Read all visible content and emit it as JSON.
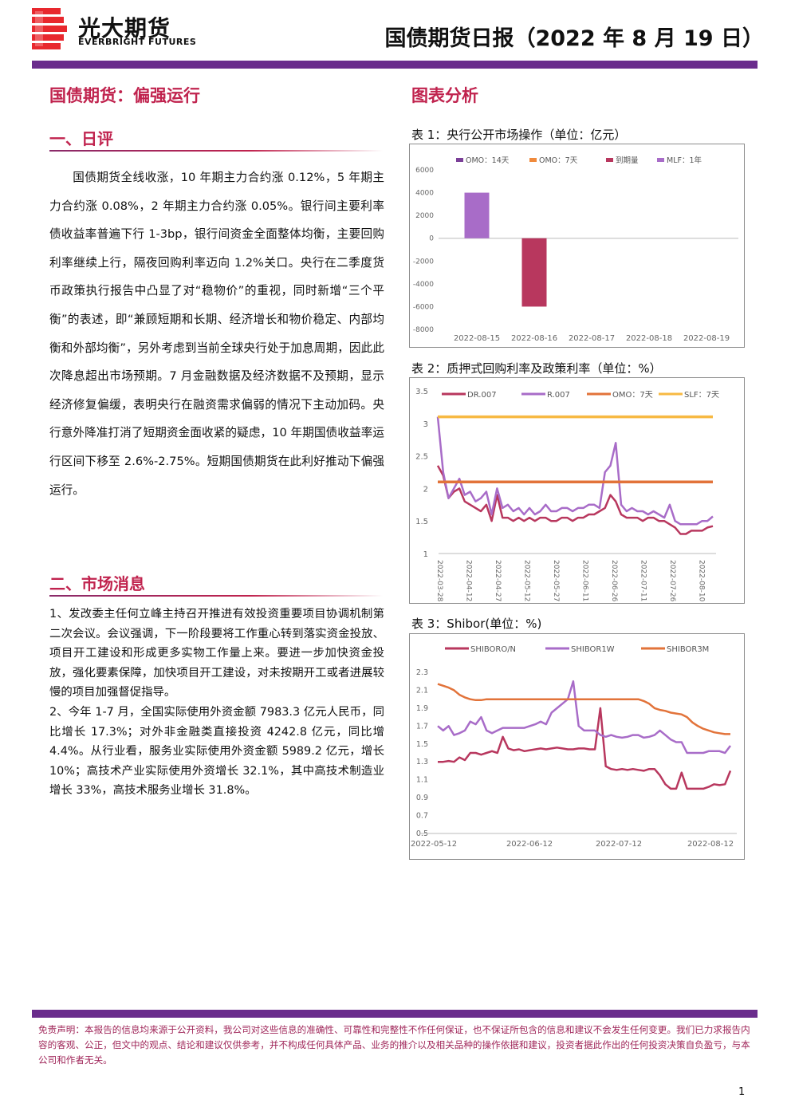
{
  "header": {
    "brand_cn": "光大期货",
    "brand_en": "EVERBRIGHT FUTURES",
    "report_title": "国债期货日报（2022 年 8 月 19 日）"
  },
  "headline": "国债期货：偏强运行",
  "chart_section_title": "图表分析",
  "sections": {
    "daily_title": "一、日评",
    "daily_body": "国债期货全线收涨，10 年期主力合约涨 0.12%，5 年期主力合约涨 0.08%，2 年期主力合约涨 0.05%。银行间主要利率债收益率普遍下行 1-3bp，银行间资金全面整体均衡，主要回购利率继续上行，隔夜回购利率迈向 1.2%关口。央行在二季度货币政策执行报告中凸显了对“稳物价”的重视，同时新增“三个平衡”的表述，即“兼顾短期和长期、经济增长和物价稳定、内部均衡和外部均衡”，另外考虑到当前全球央行处于加息周期，因此此次降息超出市场预期。7 月金融数据及经济数据不及预期，显示经济修复偏缓，表明央行在融资需求偏弱的情况下主动加码。央行意外降准打消了短期资金面收紧的疑虑，10 年期国债收益率运行区间下移至 2.6%-2.75%。短期国债期货在此利好推动下偏强运行。",
    "news_title": "二、市场消息",
    "news_items": [
      "1、发改委主任何立峰主持召开推进有效投资重要项目协调机制第二次会议。会议强调，下一阶段要将工作重心转到落实资金投放、项目开工建设和形成更多实物工作量上来。要进一步加快资金投放，强化要素保障，加快项目开工建设，对未按期开工或者进展较慢的项目加强督促指导。",
      "2、今年 1-7 月，全国实际使用外资金额 7983.3 亿元人民币，同比增长 17.3%；对外非金融类直接投资 4242.8 亿元，同比增 4.4%。从行业看，服务业实际使用外资金额 5989.2 亿元，增长 10%；高技术产业实际使用外资增长 32.1%，其中高技术制造业增长 33%，高技术服务业增长 31.8%。"
    ]
  },
  "captions": {
    "c1": "表 1：央行公开市场操作（单位：亿元）",
    "c2": "表 2：质押式回购利率及政策利率（单位：%）",
    "c3": "表 3：Shibor(单位：%)"
  },
  "colors": {
    "brand_purple": "#6a2c8c",
    "accent_red": "#c0234e",
    "omo14": "#7b3f98",
    "omo7": "#f08a3c",
    "maturity": "#b8375e",
    "mlf": "#a86cc8",
    "dr007": "#b8375e",
    "r007": "#a86cc8",
    "omo_rate": "#e2733a",
    "slf": "#f7b942",
    "shibor_on": "#b8375e",
    "shibor_1w": "#a86cc8",
    "shibor_3m": "#e2733a"
  },
  "chart_data": [
    {
      "type": "bar",
      "categories": [
        "2022-08-15",
        "2022-08-16",
        "2022-08-17",
        "2022-08-18",
        "2022-08-19"
      ],
      "series": [
        {
          "name": "OMO：14天",
          "values": [
            0,
            0,
            0,
            0,
            0
          ]
        },
        {
          "name": "OMO：7天",
          "values": [
            0,
            0,
            0,
            0,
            0
          ]
        },
        {
          "name": "到期量",
          "values": [
            0,
            -6000,
            0,
            0,
            0
          ]
        },
        {
          "name": "MLF：1年",
          "values": [
            4000,
            0,
            0,
            0,
            0
          ]
        }
      ],
      "yticks": [
        "6000",
        "4000",
        "2000",
        "0",
        "-2000",
        "-4000",
        "-6000",
        "-8000"
      ],
      "ylim": [
        -8000,
        6000
      ],
      "legend": "top"
    },
    {
      "type": "line",
      "xticks": [
        "2022-03-28",
        "2022-04-12",
        "2022-04-27",
        "2022-05-12",
        "2022-05-27",
        "2022-06-11",
        "2022-06-26",
        "2022-07-11",
        "2022-07-26",
        "2022-08-10"
      ],
      "yticks": [
        "3.5",
        "3",
        "2.5",
        "2",
        "1.5",
        "1"
      ],
      "ylim": [
        1,
        3.5
      ],
      "series": [
        {
          "name": "DR.007",
          "values": [
            2.35,
            2.2,
            1.85,
            1.95,
            2.0,
            1.8,
            1.75,
            1.7,
            1.65,
            1.75,
            1.5,
            1.9,
            1.55,
            1.55,
            1.5,
            1.55,
            1.5,
            1.55,
            1.5,
            1.55,
            1.55,
            1.5,
            1.5,
            1.55,
            1.55,
            1.5,
            1.55,
            1.55,
            1.6,
            1.6,
            1.65,
            1.7,
            1.9,
            1.8,
            1.6,
            1.55,
            1.55,
            1.55,
            1.5,
            1.55,
            1.55,
            1.5,
            1.5,
            1.45,
            1.4,
            1.3,
            1.3,
            1.35,
            1.35,
            1.35,
            1.4,
            1.42
          ]
        },
        {
          "name": "R.007",
          "values": [
            3.1,
            2.25,
            1.85,
            2.0,
            2.15,
            1.9,
            1.95,
            1.8,
            1.85,
            1.95,
            1.6,
            2.0,
            1.7,
            1.75,
            1.65,
            1.7,
            1.6,
            1.7,
            1.6,
            1.65,
            1.75,
            1.65,
            1.65,
            1.7,
            1.7,
            1.65,
            1.7,
            1.7,
            1.75,
            1.75,
            1.7,
            2.25,
            2.35,
            2.7,
            1.75,
            1.65,
            1.7,
            1.65,
            1.65,
            1.6,
            1.65,
            1.6,
            1.55,
            1.75,
            1.5,
            1.45,
            1.45,
            1.45,
            1.45,
            1.5,
            1.5,
            1.57
          ]
        },
        {
          "name": "OMO：7天",
          "values": [
            2.1,
            2.1
          ]
        },
        {
          "name": "SLF：7天",
          "values": [
            3.1,
            3.1
          ]
        }
      ],
      "legend": "top"
    },
    {
      "type": "line",
      "xticks": [
        "2022-05-12",
        "2022-06-12",
        "2022-07-12",
        "2022-08-12"
      ],
      "yticks": [
        "2.3",
        "2.1",
        "1.9",
        "1.7",
        "1.5",
        "1.3",
        "1.1",
        "0.9",
        "0.7",
        "0.5"
      ],
      "ylim": [
        0.5,
        2.3
      ],
      "series": [
        {
          "name": "SHIBORO/N",
          "values": [
            1.3,
            1.3,
            1.31,
            1.3,
            1.35,
            1.32,
            1.4,
            1.4,
            1.38,
            1.4,
            1.42,
            1.4,
            1.58,
            1.45,
            1.43,
            1.44,
            1.42,
            1.43,
            1.44,
            1.45,
            1.44,
            1.45,
            1.46,
            1.45,
            1.44,
            1.44,
            1.45,
            1.45,
            1.44,
            1.44,
            1.9,
            1.25,
            1.22,
            1.21,
            1.22,
            1.21,
            1.22,
            1.21,
            1.2,
            1.22,
            1.22,
            1.15,
            1.05,
            1.0,
            1.0,
            1.18,
            1.0,
            1.0,
            1.0,
            1.0,
            1.02,
            1.05,
            1.04,
            1.05,
            1.2
          ]
        },
        {
          "name": "SHIBOR1W",
          "values": [
            1.7,
            1.65,
            1.7,
            1.6,
            1.62,
            1.65,
            1.75,
            1.72,
            1.8,
            1.65,
            1.62,
            1.65,
            1.68,
            1.68,
            1.68,
            1.68,
            1.68,
            1.7,
            1.72,
            1.75,
            1.72,
            1.85,
            1.9,
            1.95,
            2.0,
            2.2,
            1.7,
            1.65,
            1.65,
            1.65,
            1.6,
            1.58,
            1.6,
            1.58,
            1.57,
            1.58,
            1.6,
            1.6,
            1.57,
            1.58,
            1.6,
            1.65,
            1.6,
            1.55,
            1.52,
            1.52,
            1.4,
            1.4,
            1.4,
            1.4,
            1.42,
            1.42,
            1.42,
            1.4,
            1.48
          ]
        },
        {
          "name": "SHIBOR3M",
          "values": [
            2.17,
            2.15,
            2.13,
            2.1,
            2.05,
            2.02,
            2.0,
            1.99,
            1.99,
            2.0,
            2.0,
            2.0,
            2.0,
            2.0,
            2.0,
            2.0,
            2.0,
            2.0,
            2.0,
            2.0,
            2.0,
            2.0,
            2.0,
            2.0,
            2.0,
            2.0,
            2.0,
            2.0,
            2.0,
            2.0,
            2.0,
            2.0,
            2.0,
            2.0,
            2.0,
            2.0,
            2.0,
            2.0,
            1.98,
            1.95,
            1.9,
            1.88,
            1.87,
            1.85,
            1.84,
            1.83,
            1.8,
            1.74,
            1.7,
            1.67,
            1.65,
            1.63,
            1.62,
            1.61,
            1.61
          ]
        }
      ],
      "legend": "top"
    }
  ],
  "disclaimer": "免责声明：本报告的信息均来源于公开资料，我公司对这些信息的准确性、可靠性和完整性不作任何保证，也不保证所包含的信息和建议不会发生任何变更。我们已力求报告内容的客观、公正，但文中的观点、结论和建议仅供参考，并不构成任何具体产品、业务的推介以及相关品种的操作依据和建议，投资者据此作出的任何投资决策自负盈亏，与本公司和作者无关。",
  "page_number": "1"
}
